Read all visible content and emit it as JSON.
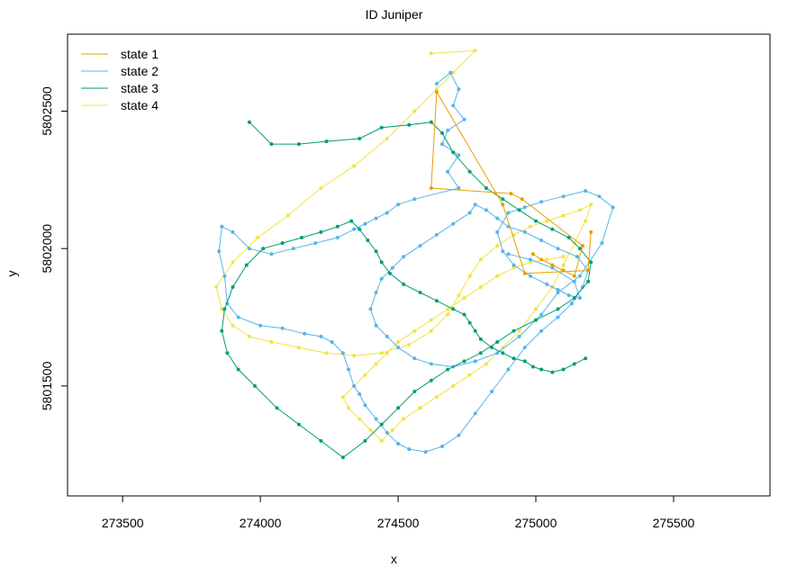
{
  "chart_data": {
    "type": "line",
    "title": "ID Juniper",
    "xlabel": "x",
    "ylabel": "y",
    "xlim": [
      273300,
      275850
    ],
    "ylim": [
      5801100,
      5802780
    ],
    "xticks": [
      273500,
      274000,
      274500,
      275000,
      275500
    ],
    "yticks": [
      5801500,
      5802000,
      5802500
    ],
    "legend_position": "top-left",
    "series": [
      {
        "name": "state 1",
        "color": "#E69F00",
        "x": [
          274990,
          275020,
          275060,
          275100,
          275140,
          275170,
          274950,
          274910,
          274620,
          274640,
          274880,
          274960,
          275190,
          275200
        ],
        "y": [
          5801980,
          5801960,
          5801940,
          5801920,
          5801900,
          5802010,
          5802180,
          5802200,
          5802220,
          5802570,
          5802160,
          5801910,
          5801920,
          5802060
        ]
      },
      {
        "name": "state 2",
        "color": "#56B4E9",
        "x": [
          274640,
          274690,
          274720,
          274700,
          274740,
          274680,
          274660,
          274720,
          274680,
          274720,
          274560,
          274500,
          274460,
          274420,
          274380,
          274340,
          274280,
          274200,
          274120,
          274040,
          273960,
          273900,
          273860,
          273850,
          273870,
          273880,
          273920,
          274000,
          274080,
          274160,
          274220,
          274260,
          274300,
          274320,
          274340,
          274360,
          274380,
          274420,
          274460,
          274500,
          274540,
          274600,
          274660,
          274720,
          274780,
          274840,
          274900,
          274960,
          275020,
          275080,
          275130,
          275170,
          275190,
          275150,
          275080,
          275020,
          274960,
          274900,
          274860,
          274820,
          274780,
          274760,
          274700,
          274640,
          274580,
          274520,
          274480,
          274440,
          274420,
          274400,
          274420,
          274460,
          274500,
          274560,
          274620,
          274700,
          274780,
          274860,
          274940,
          275020,
          275080,
          275160,
          275240,
          275280,
          275230,
          275180,
          275100,
          275020,
          274960,
          274900,
          274860,
          274880,
          274920,
          274980,
          275040,
          275080,
          275120,
          275160,
          275140,
          275060,
          274980,
          274900
        ],
        "y": [
          5802600,
          5802640,
          5802580,
          5802520,
          5802470,
          5802430,
          5802380,
          5802340,
          5802280,
          5802220,
          5802180,
          5802160,
          5802130,
          5802110,
          5802090,
          5802070,
          5802040,
          5802020,
          5802000,
          5801980,
          5802000,
          5802060,
          5802080,
          5801990,
          5801900,
          5801800,
          5801750,
          5801720,
          5801710,
          5801690,
          5801680,
          5801660,
          5801620,
          5801560,
          5801500,
          5801470,
          5801430,
          5801380,
          5801330,
          5801290,
          5801270,
          5801260,
          5801280,
          5801320,
          5801400,
          5801480,
          5801560,
          5801640,
          5801700,
          5801750,
          5801800,
          5801860,
          5801920,
          5801970,
          5802000,
          5802030,
          5802060,
          5802080,
          5802110,
          5802140,
          5802160,
          5802130,
          5802090,
          5802050,
          5802010,
          5801970,
          5801930,
          5801890,
          5801840,
          5801780,
          5801720,
          5801680,
          5801640,
          5801600,
          5801580,
          5801570,
          5801590,
          5801620,
          5801680,
          5801760,
          5801840,
          5801900,
          5802020,
          5802150,
          5802190,
          5802210,
          5802190,
          5802170,
          5802150,
          5802130,
          5802060,
          5801990,
          5801940,
          5801900,
          5801870,
          5801850,
          5801830,
          5801820,
          5801880,
          5801930,
          5801960,
          5801980
        ]
      },
      {
        "name": "state 3",
        "color": "#009E73",
        "x": [
          273960,
          274040,
          274140,
          274240,
          274360,
          274440,
          274540,
          274620,
          274660,
          274700,
          274760,
          274820,
          274880,
          274940,
          275000,
          275060,
          275120,
          275160,
          275200,
          275190,
          275140,
          275080,
          275000,
          274920,
          274860,
          274800,
          274740,
          274680,
          274620,
          274560,
          274500,
          274440,
          274380,
          274300,
          274220,
          274140,
          274060,
          273980,
          273920,
          273880,
          273860,
          273870,
          273900,
          273950,
          274010,
          274080,
          274150,
          274220,
          274280,
          274330,
          274360,
          274390,
          274420,
          274440,
          274470,
          274520,
          274580,
          274640,
          274700,
          274740,
          274760,
          274780,
          274800,
          274840,
          274880,
          274920,
          274960,
          274990,
          275020,
          275060,
          275100,
          275140,
          275180
        ],
        "y": [
          5802460,
          5802380,
          5802380,
          5802390,
          5802400,
          5802440,
          5802450,
          5802460,
          5802420,
          5802350,
          5802280,
          5802220,
          5802180,
          5802140,
          5802100,
          5802070,
          5802040,
          5802000,
          5801950,
          5801880,
          5801820,
          5801780,
          5801740,
          5801700,
          5801660,
          5801620,
          5801590,
          5801560,
          5801520,
          5801480,
          5801420,
          5801360,
          5801300,
          5801240,
          5801300,
          5801360,
          5801420,
          5801500,
          5801560,
          5801620,
          5801700,
          5801780,
          5801860,
          5801940,
          5802000,
          5802020,
          5802040,
          5802060,
          5802080,
          5802100,
          5802070,
          5802030,
          5801990,
          5801950,
          5801910,
          5801870,
          5801840,
          5801810,
          5801780,
          5801760,
          5801730,
          5801700,
          5801670,
          5801640,
          5801620,
          5801600,
          5801590,
          5801570,
          5801560,
          5801550,
          5801560,
          5801580,
          5801600
        ]
      },
      {
        "name": "state 4",
        "color": "#F0E442",
        "x": [
          274620,
          274780,
          274700,
          274640,
          274560,
          274460,
          274340,
          274220,
          274100,
          273990,
          273900,
          273840,
          273860,
          273900,
          273960,
          274040,
          274140,
          274240,
          274340,
          274440,
          274540,
          274620,
          274680,
          274720,
          274760,
          274800,
          274860,
          274920,
          274980,
          275040,
          275100,
          275160,
          275200,
          275180,
          275140,
          275100,
          275060,
          275000,
          274940,
          274880,
          274820,
          274760,
          274700,
          274640,
          274580,
          274520,
          274480,
          274440,
          274400,
          274360,
          274320,
          274300,
          274340,
          274380,
          274420,
          274460,
          274500,
          274560,
          274620,
          274680,
          274740,
          274800,
          274860,
          274920,
          274980,
          275040,
          275100
        ],
        "y": [
          5802710,
          5802720,
          5802640,
          5802580,
          5802500,
          5802400,
          5802300,
          5802220,
          5802120,
          5802040,
          5801950,
          5801860,
          5801780,
          5801720,
          5801680,
          5801660,
          5801640,
          5801620,
          5801610,
          5801620,
          5801650,
          5801700,
          5801760,
          5801830,
          5801900,
          5801960,
          5802010,
          5802050,
          5802080,
          5802100,
          5802120,
          5802140,
          5802160,
          5802100,
          5802020,
          5801940,
          5801860,
          5801780,
          5801700,
          5801640,
          5801580,
          5801540,
          5801500,
          5801460,
          5801420,
          5801380,
          5801340,
          5801300,
          5801340,
          5801380,
          5801420,
          5801460,
          5801500,
          5801540,
          5801580,
          5801620,
          5801660,
          5801700,
          5801740,
          5801780,
          5801820,
          5801860,
          5801900,
          5801930,
          5801950,
          5801960,
          5801970
        ]
      }
    ]
  }
}
